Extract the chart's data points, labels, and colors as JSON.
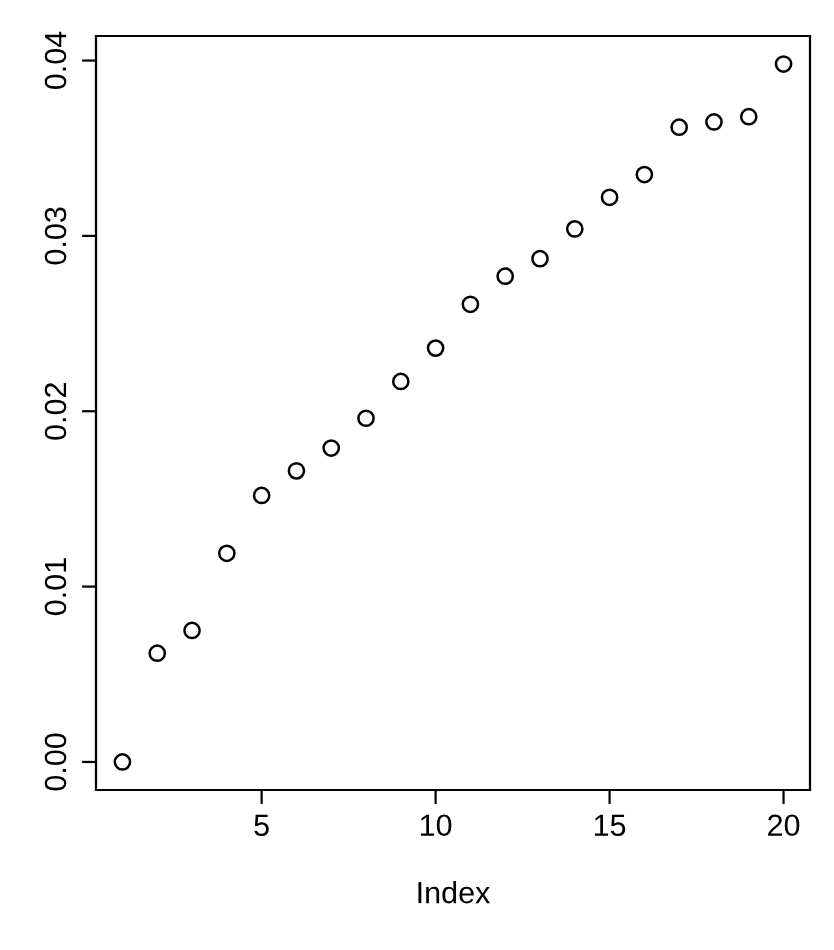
{
  "chart_data": {
    "type": "scatter",
    "xlabel": "Index",
    "x": [
      1,
      2,
      3,
      4,
      5,
      6,
      7,
      8,
      9,
      10,
      11,
      12,
      13,
      14,
      15,
      16,
      17,
      18,
      19,
      20
    ],
    "series": [
      {
        "color": "#000000",
        "values": [
          0.0,
          0.0062,
          0.0075,
          0.0119,
          0.0152,
          0.0166,
          0.0179,
          0.0196,
          0.0217,
          0.0236,
          0.0261,
          0.0277,
          0.0287,
          0.0304,
          0.0322,
          0.0335,
          0.0362,
          0.0365,
          0.0368,
          0.0398
        ]
      }
    ],
    "marker": "circle",
    "grid": false,
    "legend": false,
    "xlim": [
      0.24,
      20.76
    ],
    "ylim": [
      -0.0016,
      0.0414
    ],
    "xticks": [
      5,
      10,
      15,
      20
    ],
    "yticks": [
      {
        "value": 0,
        "label": "0.00"
      },
      {
        "value": 0.01,
        "label": "0.01"
      },
      {
        "value": 0.02,
        "label": "0.02"
      },
      {
        "value": 0.03,
        "label": "0.03"
      },
      {
        "value": 0.04,
        "label": "0.04"
      }
    ]
  }
}
